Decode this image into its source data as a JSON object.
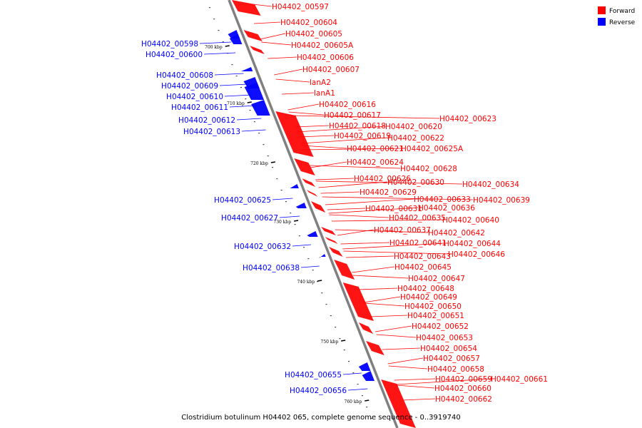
{
  "caption": "Clostridium botulinum H04402 065, complete genome sequence - 0..3919740",
  "legend": [
    {
      "label": "Forward",
      "color": "#ff0000"
    },
    {
      "label": "Reverse",
      "color": "#0000ff"
    }
  ],
  "colors": {
    "forward": "#ff0000",
    "reverse": "#0000ff",
    "backbone": "#808080"
  },
  "ticks": [
    "700 kbp",
    "710 kbp",
    "720 kbp",
    "730 kbp",
    "740 kbp",
    "750 kbp",
    "760 kbp"
  ],
  "forward_labels": [
    "H04402_00597",
    "H04402_00604",
    "H04402_00605",
    "H04402_00605A",
    "H04402_00606",
    "H04402_00607",
    "lanA2",
    "lanA1",
    "H04402_00616",
    "H04402_00617",
    "H04402_00618",
    "H04402_00620",
    "H04402_00623",
    "H04402_00619",
    "H04402_00622",
    "H04402_00621",
    "H04402_00625A",
    "H04402_00624",
    "H04402_00628",
    "H04402_00626",
    "H04402_00630",
    "H04402_00634",
    "H04402_00629",
    "H04402_00633",
    "H04402_00639",
    "H04402_00631",
    "H04402_00636",
    "H04402_00635",
    "H04402_00640",
    "H04402_00637",
    "H04402_00642",
    "H04402_00641",
    "H04402_00644",
    "H04402_00646",
    "H04402_00643",
    "H04402_00645",
    "H04402_00647",
    "H04402_00648",
    "H04402_00649",
    "H04402_00650",
    "H04402_00651",
    "H04402_00652",
    "H04402_00653",
    "H04402_00654",
    "H04402_00657",
    "H04402_00658",
    "H04402_00659",
    "H04402_00661",
    "H04402_00660",
    "H04402_00662"
  ],
  "reverse_labels": [
    "H04402_00598",
    "H04402_00600",
    "H04402_00608",
    "H04402_00609",
    "H04402_00610",
    "H04402_00611",
    "H04402_00612",
    "H04402_00613",
    "H04402_00625",
    "H04402_00627",
    "H04402_00632",
    "H04402_00638",
    "H04402_00655",
    "H04402_00656"
  ]
}
